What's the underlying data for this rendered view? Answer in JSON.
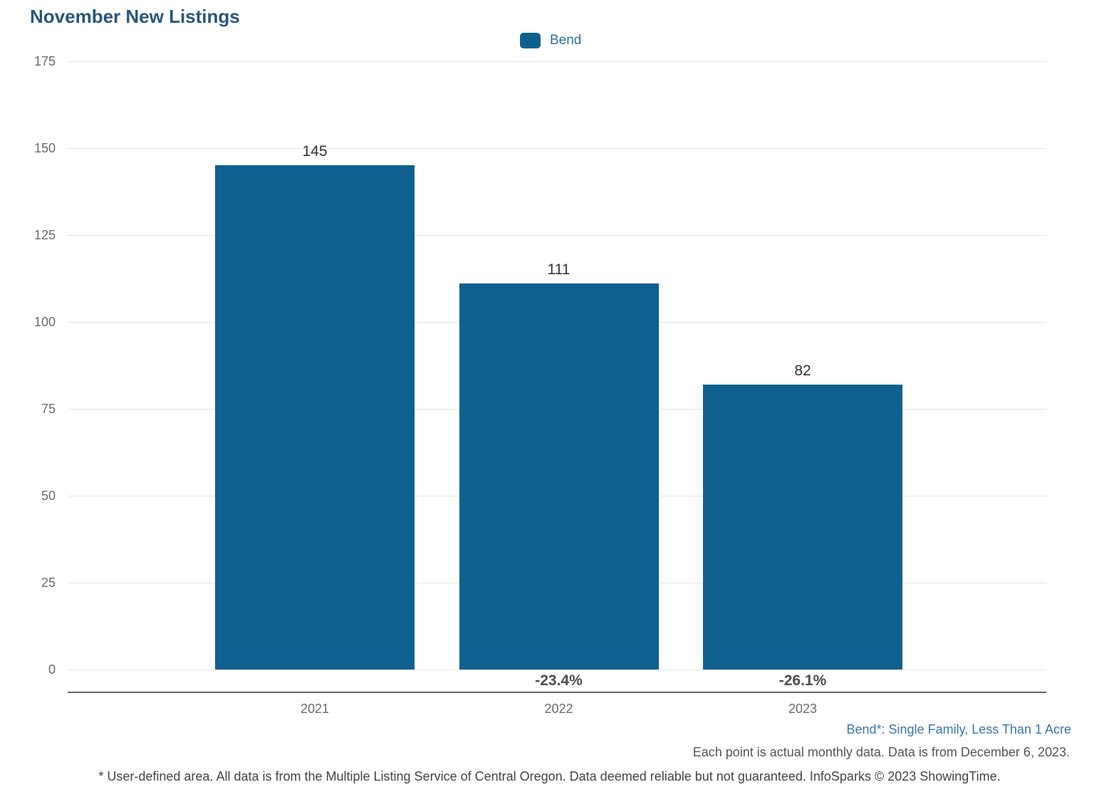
{
  "title": "November New Listings",
  "legend": {
    "label": "Bend",
    "swatch_color": "#0f608f"
  },
  "chart_data": {
    "type": "bar",
    "title": "November New Listings",
    "categories": [
      "2021",
      "2022",
      "2023"
    ],
    "series": [
      {
        "name": "Bend",
        "values": [
          145,
          111,
          82
        ]
      }
    ],
    "bar_value_labels": [
      "145",
      "111",
      "82"
    ],
    "pct_change_labels": [
      null,
      "-23.4%",
      "-26.1%"
    ],
    "xlabel": "",
    "ylabel": "",
    "ylim": [
      0,
      175
    ],
    "yticks": [
      0,
      25,
      50,
      75,
      100,
      125,
      150,
      175
    ],
    "grid": true,
    "legend_position": "top-center",
    "bar_color": "#0f608f"
  },
  "footnotes": {
    "segment_note": "Bend*: Single Family, Less Than 1 Acre",
    "data_note": "Each point is actual monthly data. Data is from December 6, 2023.",
    "disclaimer": "* User-defined area. All data is from the Multiple Listing Service of Central Oregon. Data deemed reliable but not guaranteed. InfoSparks © 2023 ShowingTime."
  },
  "colors": {
    "bar": "#0f608f",
    "title": "#27567d",
    "legend_text": "#2e6e9e",
    "segment_note_text": "#3b76ad",
    "gridline": "#e3e3e3",
    "axis_line": "#666666",
    "tick_text": "#6b6b6b",
    "value_text": "#333333",
    "pct_text": "#4d4d4d"
  }
}
